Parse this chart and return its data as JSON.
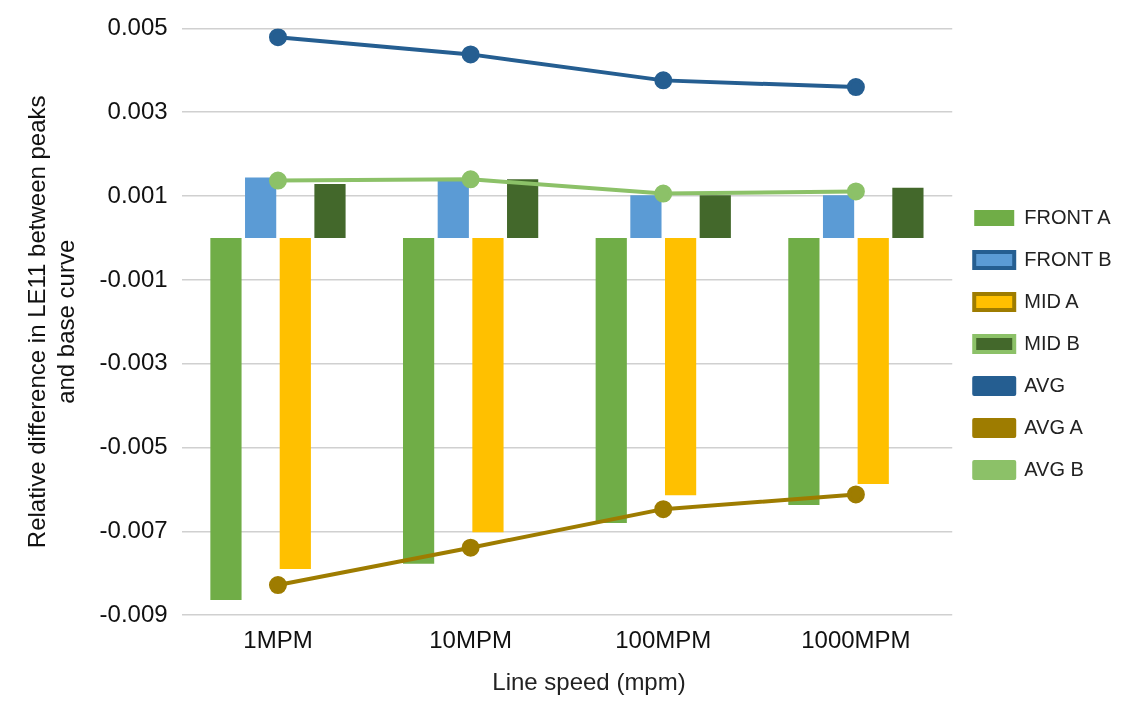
{
  "chart_data": {
    "type": "bar",
    "xlabel": "Line speed (mpm)",
    "ylabel": "Relative difference in LE11 between peaks and base curve",
    "categories": [
      "1MPM",
      "10MPM",
      "100MPM",
      "1000MPM"
    ],
    "series": [
      {
        "name": "FRONT A",
        "color": "#70ad47",
        "values": [
          -0.00864,
          -0.00777,
          -0.0068,
          -0.00637
        ]
      },
      {
        "name": "FRONT B",
        "color": "#5b9bd5",
        "values": [
          0.00144,
          0.0014,
          0.00102,
          0.00102
        ]
      },
      {
        "name": "MID A",
        "color": "#ffc000",
        "values": [
          -0.0079,
          -0.00702,
          -0.00614,
          -0.00587
        ]
      },
      {
        "name": "MID B",
        "color": "#43682b",
        "values": [
          0.00129,
          0.0014,
          0.00102,
          0.0012
        ]
      },
      {
        "name": "AVG",
        "type": "line",
        "color": "#255e91",
        "values": [
          0.00479,
          0.00438,
          0.00376,
          0.0036
        ]
      },
      {
        "name": "AVG A",
        "type": "line",
        "color": "#9e7c00",
        "values": [
          -0.00828,
          -0.00739,
          -0.00647,
          -0.00612
        ]
      },
      {
        "name": "AVG B",
        "type": "line",
        "color": "#8cc168",
        "values": [
          0.00137,
          0.0014,
          0.00106,
          0.00111
        ]
      }
    ],
    "ylim": [
      -0.009,
      0.005
    ],
    "yticks": [
      -0.009,
      -0.007,
      -0.005,
      -0.003,
      -0.001,
      0.001,
      0.003,
      0.005
    ],
    "grid": "y",
    "legend": "right",
    "marker": "circle"
  }
}
